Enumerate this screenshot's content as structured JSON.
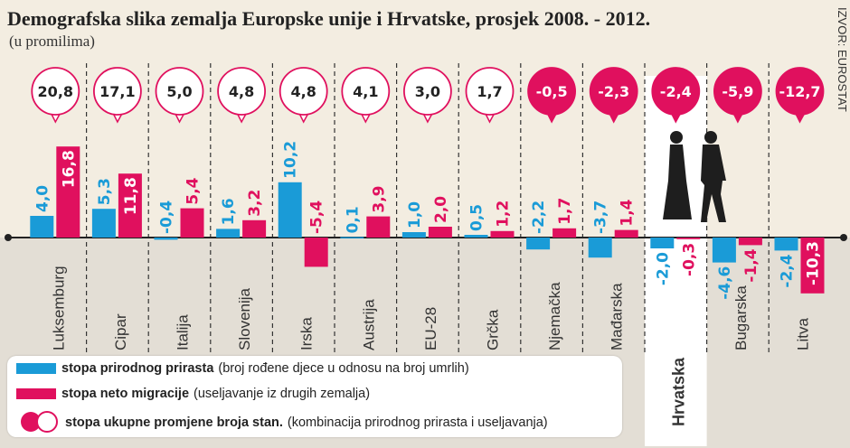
{
  "chart_data": {
    "type": "bar",
    "title": "Demografska slika zemalja Europske unije i Hrvatske, prosjek 2008. - 2012.",
    "subtitle": "(u promilima)",
    "source": "IZVOR: EUROSTAT",
    "categories": [
      "Luksemburg",
      "Cipar",
      "Italija",
      "Slovenija",
      "Irska",
      "Austrija",
      "EU-28",
      "Grčka",
      "Njemačka",
      "Mađarska",
      "Hrvatska",
      "Bugarska",
      "Litva"
    ],
    "highlight": "Hrvatska",
    "series": [
      {
        "name": "stopa prirodnog prirasta",
        "color": "#1a9bd7",
        "values": [
          4.0,
          5.3,
          -0.4,
          1.6,
          10.2,
          0.1,
          1.0,
          0.5,
          -2.2,
          -3.7,
          -2.0,
          -4.6,
          -2.4
        ],
        "labels": [
          "4,0",
          "5,3",
          "-0,4",
          "1,6",
          "10,2",
          "0,1",
          "1,0",
          "0,5",
          "-2,2",
          "-3,7",
          "-2,0",
          "-4,6",
          "-2,4"
        ]
      },
      {
        "name": "stopa neto migracije",
        "color": "#e0105e",
        "values": [
          16.8,
          11.8,
          5.4,
          3.2,
          -5.4,
          3.9,
          2.0,
          1.2,
          1.7,
          1.4,
          -0.3,
          -1.4,
          -10.3
        ],
        "labels": [
          "16,8",
          "11,8",
          "5,4",
          "3,2",
          "-5,4",
          "3,9",
          "2,0",
          "1,2",
          "1,7",
          "1,4",
          "-0,3",
          "-1,4",
          "-10,3"
        ]
      },
      {
        "name": "stopa ukupne promjene broja stan.",
        "color": "#e0105e",
        "values": [
          20.8,
          17.1,
          5.0,
          4.8,
          4.8,
          4.1,
          3.0,
          1.7,
          -0.5,
          -2.3,
          -2.4,
          -5.9,
          -12.7
        ],
        "labels": [
          "20,8",
          "17,1",
          "5,0",
          "4,8",
          "4,8",
          "4,1",
          "3,0",
          "1,7",
          "-0,5",
          "-2,3",
          "-2,4",
          "-5,9",
          "-12,7"
        ]
      }
    ],
    "legend": [
      {
        "bold": "stopa prirodnog prirasta",
        "note": "(broj rođene djece u odnosu na broj umrlih)"
      },
      {
        "bold": "stopa neto migracije",
        "note": "(useljavanje iz drugih zemalja)"
      },
      {
        "bold": "stopa ukupne promjene broja stan.",
        "note": "(kombinacija prirodnog prirasta i useljavanja)"
      }
    ],
    "legend_placement": "bottom-left",
    "grid": false
  }
}
